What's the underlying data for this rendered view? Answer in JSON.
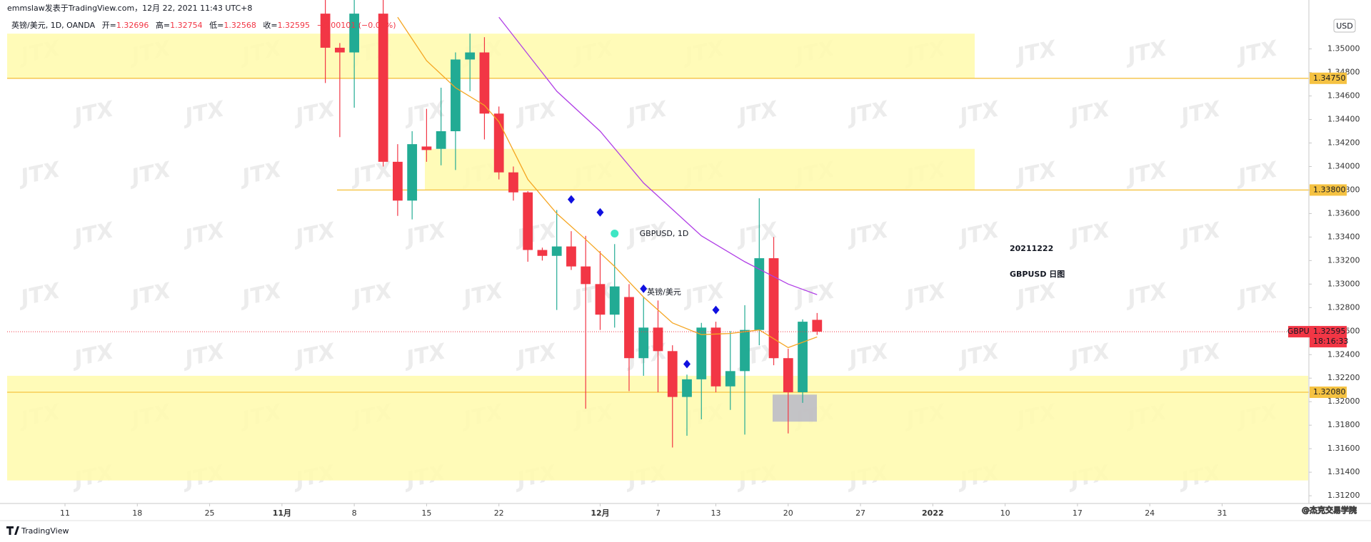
{
  "header": {
    "author_line": "emmslaw发表于TradingView.com，12月 22, 2021 11:43 UTC+8",
    "legend": {
      "symbol": "英镑/美元, 1D, OANDA",
      "open_label": "开=",
      "high_label": "高=",
      "low_label": "低=",
      "close_label": "收=",
      "change": "−0.00101 (−0.08%)"
    },
    "currency_button": "USD"
  },
  "chart_data": {
    "type": "candlestick",
    "watermark": "JTX",
    "symbol_watermark": "GBPUSD, 1D",
    "symbol_watermark_sub": "英镑/美元",
    "annotation": [
      "20211222",
      "GBPUSD 日图"
    ],
    "annotation_color": "#1515ee",
    "x": [
      "2021-11-04",
      "2021-11-05",
      "2021-11-08",
      "2021-11-10",
      "2021-11-11",
      "2021-11-12",
      "2021-11-15",
      "2021-11-16",
      "2021-11-17",
      "2021-11-18",
      "2021-11-19",
      "2021-11-22",
      "2021-11-23",
      "2021-11-24",
      "2021-11-25",
      "2021-11-26",
      "2021-11-29",
      "2021-11-30",
      "2021-12-01",
      "2021-12-02",
      "2021-12-03",
      "2021-12-06",
      "2021-12-07",
      "2021-12-08",
      "2021-12-09",
      "2021-12-10",
      "2021-12-13",
      "2021-12-14",
      "2021-12-15",
      "2021-12-16",
      "2021-12-17",
      "2021-12-20",
      "2021-12-21",
      "2021-12-22"
    ],
    "open": [
      1.353,
      1.3501,
      1.3497,
      1.353,
      1.3404,
      1.3371,
      1.3417,
      1.3415,
      1.343,
      1.3491,
      1.3497,
      1.3445,
      1.3395,
      1.3378,
      1.3329,
      1.3324,
      1.3332,
      1.3315,
      1.33,
      1.3274,
      1.3289,
      1.3237,
      1.3263,
      1.3243,
      1.3204,
      1.3219,
      1.3263,
      1.3213,
      1.3226,
      1.3261,
      1.3322,
      1.3237,
      1.3208,
      1.32696
    ],
    "high": [
      1.3545,
      1.3505,
      1.3545,
      1.3545,
      1.3419,
      1.343,
      1.3449,
      1.3467,
      1.3497,
      1.3513,
      1.351,
      1.3451,
      1.34,
      1.3379,
      1.3331,
      1.3363,
      1.3345,
      1.3341,
      1.3328,
      1.3334,
      1.33,
      1.3289,
      1.3286,
      1.3248,
      1.3223,
      1.3267,
      1.3268,
      1.326,
      1.3282,
      1.3373,
      1.334,
      1.3245,
      1.327,
      1.32754
    ],
    "low": [
      1.3471,
      1.3425,
      1.345,
      1.34,
      1.3358,
      1.3355,
      1.3404,
      1.3401,
      1.3397,
      1.3464,
      1.3423,
      1.3389,
      1.3371,
      1.3319,
      1.332,
      1.3278,
      1.3312,
      1.3194,
      1.3261,
      1.3263,
      1.3209,
      1.3222,
      1.3208,
      1.3161,
      1.3171,
      1.3185,
      1.3208,
      1.3193,
      1.3172,
      1.3248,
      1.3231,
      1.3173,
      1.3199,
      1.32568
    ],
    "close": [
      1.3501,
      1.3497,
      1.353,
      1.3404,
      1.3371,
      1.3419,
      1.3414,
      1.343,
      1.3491,
      1.3497,
      1.3445,
      1.3395,
      1.3378,
      1.3329,
      1.3324,
      1.3332,
      1.3315,
      1.33,
      1.3274,
      1.3298,
      1.3237,
      1.3263,
      1.3243,
      1.3204,
      1.3219,
      1.3263,
      1.3213,
      1.3226,
      1.3261,
      1.3322,
      1.3237,
      1.3208,
      1.3268,
      1.32595
    ],
    "up_color": "#22ab94",
    "down_color": "#f23645",
    "lines": [
      {
        "color": "#f5a623",
        "x": [
          "2021-11-11",
          "2021-11-15",
          "2021-11-17",
          "2021-11-19",
          "2021-11-22",
          "2021-11-24",
          "2021-11-26",
          "2021-11-30",
          "2021-12-02",
          "2021-12-06",
          "2021-12-08",
          "2021-12-10",
          "2021-12-14",
          "2021-12-16",
          "2021-12-20",
          "2021-12-22"
        ],
        "values": [
          1.3527,
          1.349,
          1.3467,
          1.3452,
          1.3438,
          1.3389,
          1.336,
          1.3338,
          1.3315,
          1.3289,
          1.3267,
          1.3257,
          1.3258,
          1.3261,
          1.3246,
          1.3255
        ]
      },
      {
        "color": "#b03ee6",
        "x": [
          "2021-11-22",
          "2021-11-26",
          "2021-12-01",
          "2021-12-06",
          "2021-12-10",
          "2021-12-15",
          "2021-12-20",
          "2021-12-22"
        ],
        "values": [
          1.3527,
          1.3464,
          1.343,
          1.3386,
          1.3341,
          1.3319,
          1.33,
          1.3291
        ]
      }
    ],
    "markers": [
      {
        "shape": "diamond",
        "color": "#1010e0",
        "x": [
          "2021-11-29",
          "2021-12-01",
          "2021-12-06",
          "2021-12-09",
          "2021-12-13"
        ],
        "values": [
          1.3372,
          1.3361,
          1.3296,
          1.3232,
          1.3278
        ]
      },
      {
        "shape": "circle",
        "color": "#3ee6c4",
        "x": [
          "2021-12-02"
        ],
        "values": [
          1.3343
        ]
      }
    ],
    "zones": [
      {
        "low": 1.3475,
        "high": 1.3513
      },
      {
        "low": 1.338,
        "high": 1.3415
      },
      {
        "low": 1.3133,
        "high": 1.3222
      }
    ],
    "zone_color": "#fffbb0",
    "box": {
      "low": 1.3183,
      "high": 1.3206
    },
    "hlines": [
      {
        "value": 1.3475,
        "label": "1.34750"
      },
      {
        "value": 1.338,
        "label": "1.33800"
      },
      {
        "value": 1.3208,
        "label": "1.32080"
      }
    ],
    "hline_color": "#f5c242",
    "price_tag": "GBPUSD",
    "countdown": "18:16:33",
    "xlim": [
      "2021-10-05",
      "2022-02-08"
    ],
    "xticks": [
      {
        "value": "2021-10-11",
        "label": "11"
      },
      {
        "value": "2021-10-18",
        "label": "18"
      },
      {
        "value": "2021-10-25",
        "label": "25"
      },
      {
        "value": "2021-11-01",
        "label": "11月"
      },
      {
        "value": "2021-11-08",
        "label": "8"
      },
      {
        "value": "2021-11-15",
        "label": "15"
      },
      {
        "value": "2021-11-22",
        "label": "22"
      },
      {
        "value": "2021-12-01",
        "label": "12月"
      },
      {
        "value": "2021-12-07",
        "label": "7"
      },
      {
        "value": "2021-12-13",
        "label": "13"
      },
      {
        "value": "2021-12-20",
        "label": "20"
      },
      {
        "value": "2021-12-27",
        "label": "27"
      },
      {
        "value": "2022-01-03",
        "label": "2022"
      },
      {
        "value": "2022-01-10",
        "label": "10"
      },
      {
        "value": "2022-01-17",
        "label": "17"
      },
      {
        "value": "2022-01-24",
        "label": "24"
      },
      {
        "value": "2022-01-31",
        "label": "31"
      }
    ],
    "ylim": [
      1.31134,
      1.35416
    ],
    "yticks": [
      {
        "value": 1.312,
        "label": "1.31200"
      },
      {
        "value": 1.314,
        "label": "1.31400"
      },
      {
        "value": 1.316,
        "label": "1.31600"
      },
      {
        "value": 1.318,
        "label": "1.31800"
      },
      {
        "value": 1.32,
        "label": "1.32000"
      },
      {
        "value": 1.322,
        "label": "1.32200"
      },
      {
        "value": 1.324,
        "label": "1.32400"
      },
      {
        "value": 1.326,
        "label": "1.32600"
      },
      {
        "value": 1.328,
        "label": "1.32800"
      },
      {
        "value": 1.33,
        "label": "1.33000"
      },
      {
        "value": 1.332,
        "label": "1.33200"
      },
      {
        "value": 1.334,
        "label": "1.33400"
      },
      {
        "value": 1.336,
        "label": "1.33600"
      },
      {
        "value": 1.338,
        "label": "1.33800"
      },
      {
        "value": 1.34,
        "label": "1.34000"
      },
      {
        "value": 1.342,
        "label": "1.34200"
      },
      {
        "value": 1.344,
        "label": "1.34400"
      },
      {
        "value": 1.346,
        "label": "1.34600"
      },
      {
        "value": 1.348,
        "label": "1.34800"
      },
      {
        "value": 1.35,
        "label": "1.35000"
      }
    ],
    "grid": false
  },
  "footer": {
    "brand": "TradingView",
    "credit": "@杰克交易学院"
  }
}
